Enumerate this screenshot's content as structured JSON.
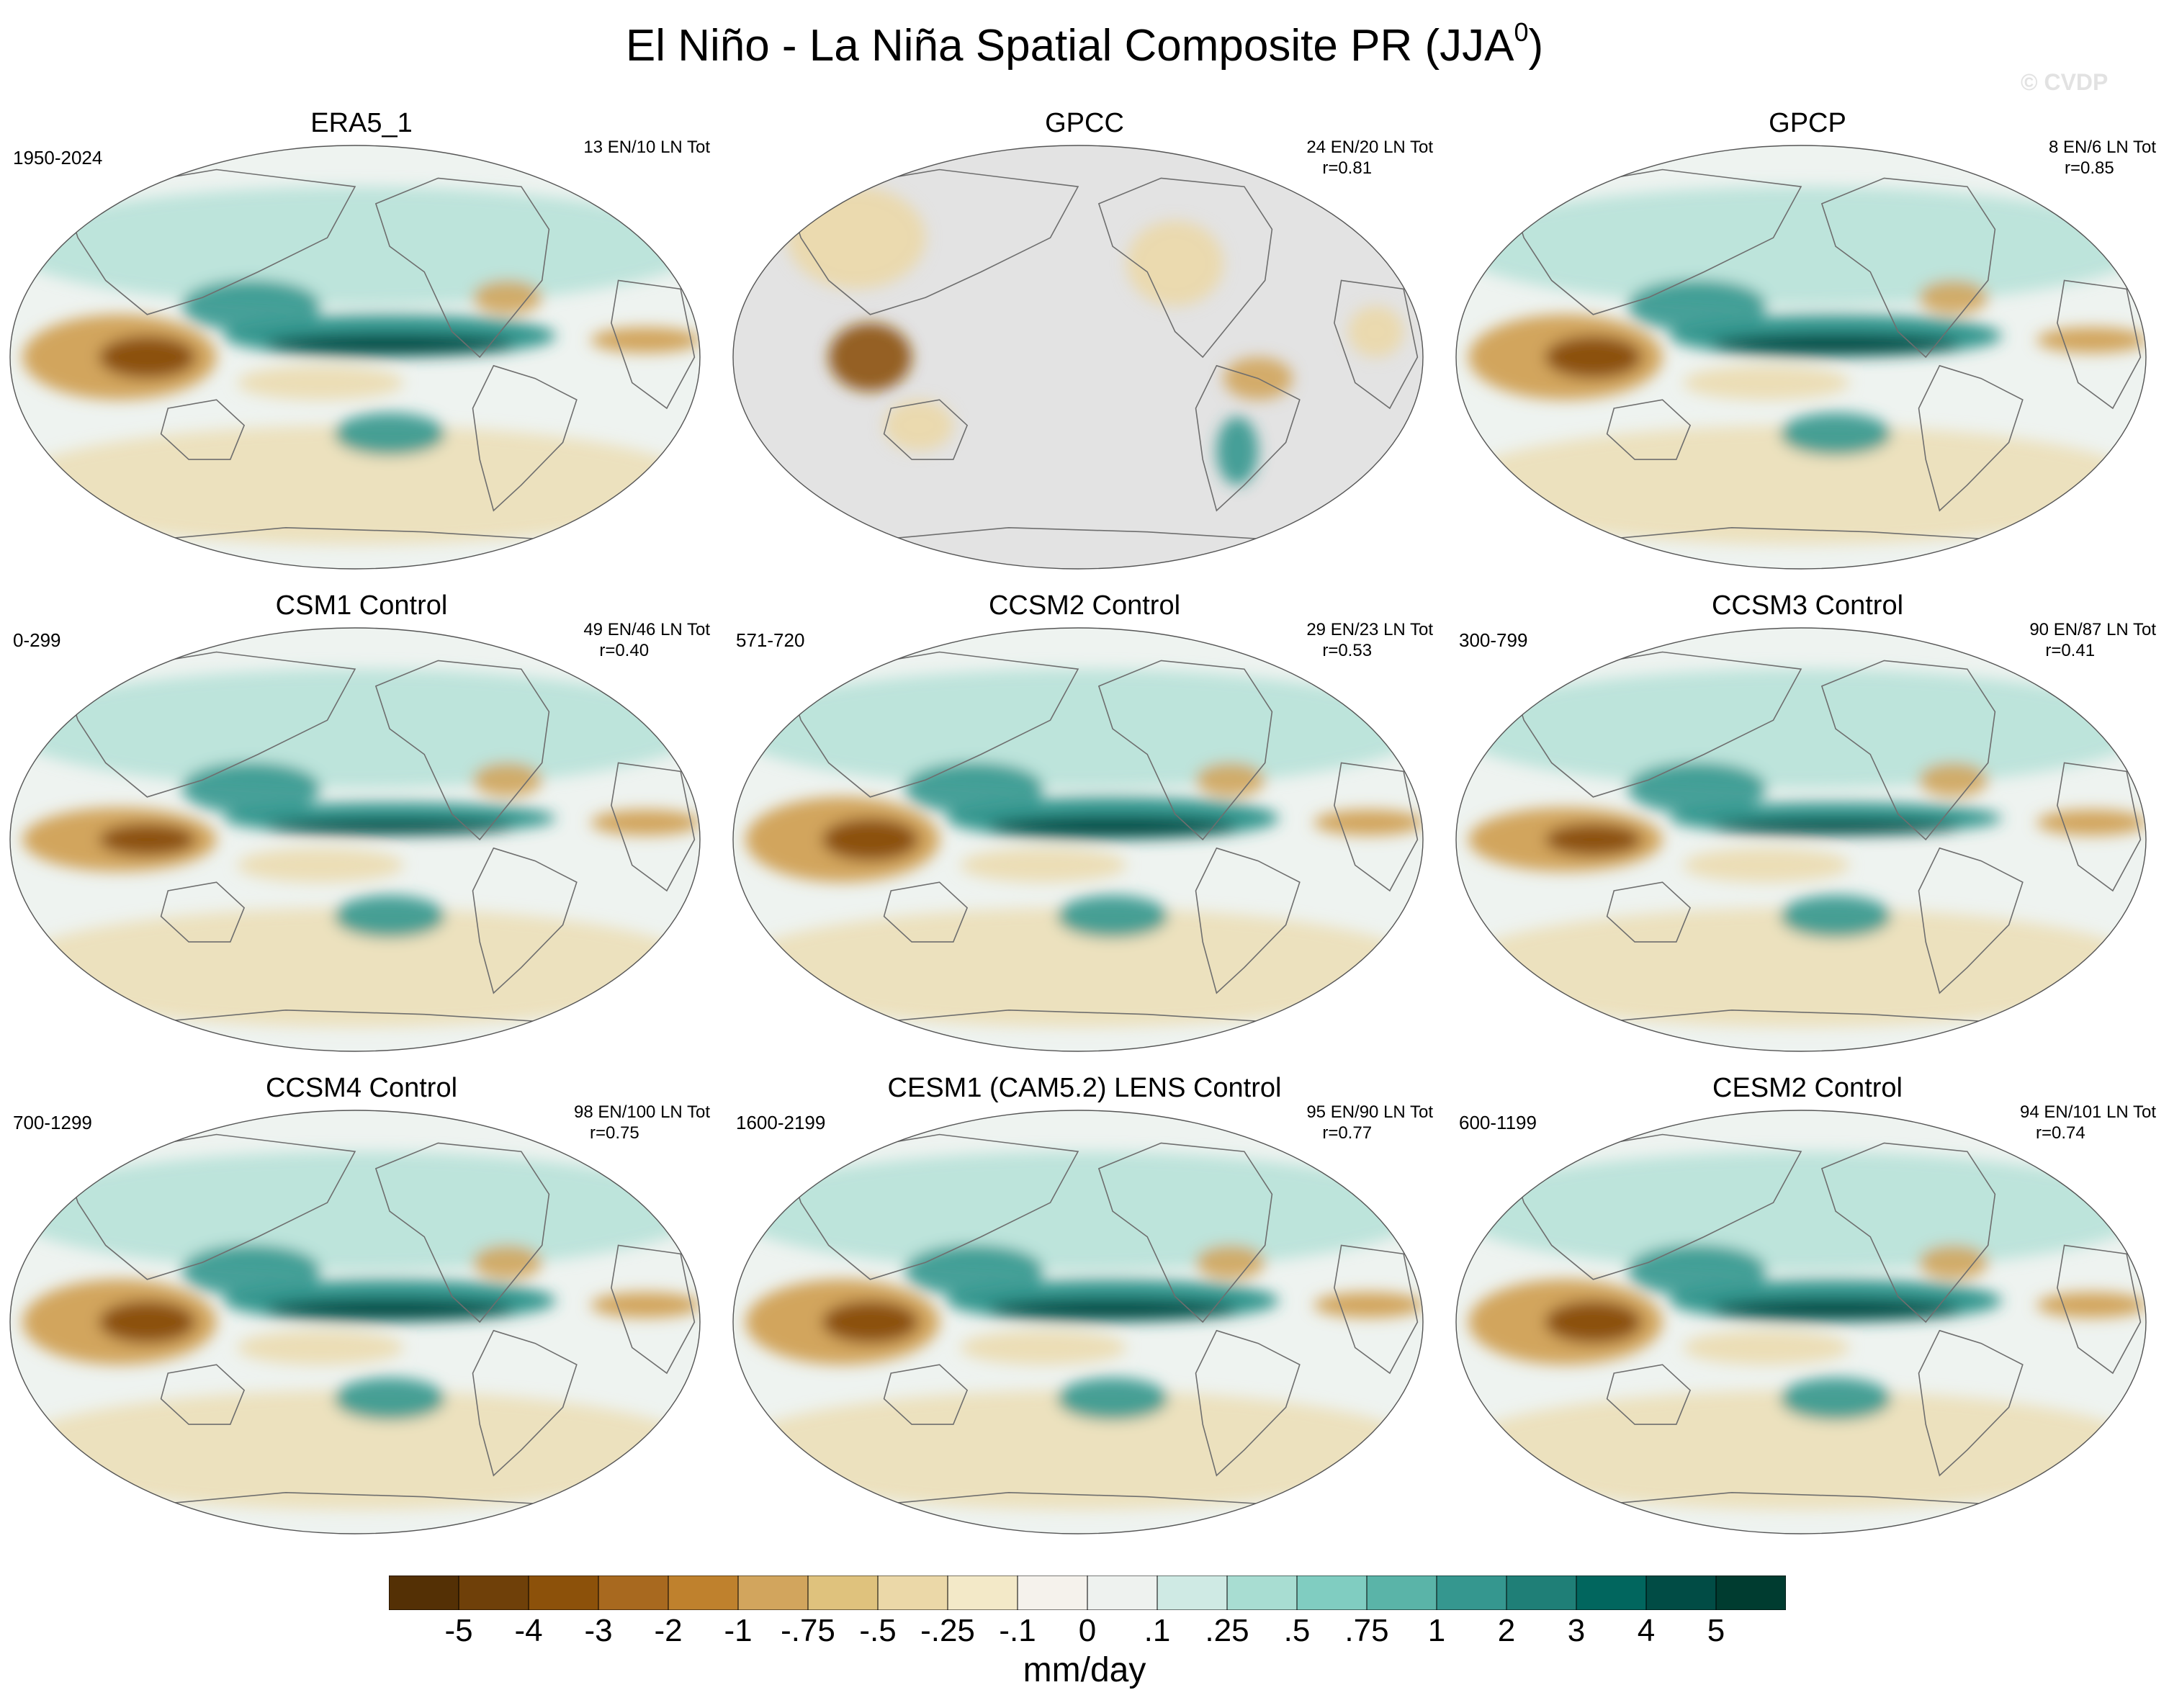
{
  "title": "El Niño - La Niña Spatial Composite PR (JJA",
  "title_sup": "0",
  "title_close": ")",
  "watermark": "© CVDP",
  "panels": [
    {
      "name": "ERA5_1",
      "period": "1950-2024",
      "counts": "13 EN/10 LN Tot",
      "r": "",
      "type": "full"
    },
    {
      "name": "GPCC",
      "period": "",
      "counts": "24 EN/20 LN Tot",
      "r": "r=0.81",
      "type": "land"
    },
    {
      "name": "GPCP",
      "period": "",
      "counts": "8 EN/6 LN Tot",
      "r": "r=0.85",
      "type": "full"
    },
    {
      "name": "CSM1 Control",
      "period": "0-299",
      "counts": "49 EN/46 LN Tot",
      "r": "r=0.40",
      "type": "model_weak"
    },
    {
      "name": "CCSM2 Control",
      "period": "571-720",
      "counts": "29 EN/23 LN Tot",
      "r": "r=0.53",
      "type": "model"
    },
    {
      "name": "CCSM3 Control",
      "period": "300-799",
      "counts": "90 EN/87 LN Tot",
      "r": "r=0.41",
      "type": "model_weak"
    },
    {
      "name": "CCSM4 Control",
      "period": "700-1299",
      "counts": "98 EN/100 LN Tot",
      "r": "r=0.75",
      "type": "model_strong"
    },
    {
      "name": "CESM1 (CAM5.2) LENS Control",
      "period": "1600-2199",
      "counts": "95 EN/90 LN Tot",
      "r": "r=0.77",
      "type": "model_strong"
    },
    {
      "name": "CESM2 Control",
      "period": "600-1199",
      "counts": "94 EN/101 LN Tot",
      "r": "r=0.74",
      "type": "model_strong"
    }
  ],
  "colorbar": {
    "labels": [
      "-5",
      "-4",
      "-3",
      "-2",
      "-1",
      "-.75",
      "-.5",
      "-.25",
      "-.1",
      "0",
      ".1",
      ".25",
      ".5",
      ".75",
      "1",
      "2",
      "3",
      "4",
      "5"
    ],
    "colors": [
      "#543005",
      "#6f4009",
      "#8c510a",
      "#a8691f",
      "#bf812d",
      "#d2a55d",
      "#dfc27d",
      "#ebd8a8",
      "#f3e9c8",
      "#f5f2ec",
      "#eef2ef",
      "#cfeae4",
      "#a8ddd2",
      "#80cdc1",
      "#5ab4a8",
      "#35978f",
      "#1f7f77",
      "#01665e",
      "#014c45",
      "#003c30"
    ],
    "units": "mm/day"
  },
  "map_colors": {
    "ocean_bg": "#eef3f0",
    "missing": "#e3e3e3",
    "coast": "#6e6e6e",
    "dry_strong": "#8c510a",
    "dry_mid": "#d2a55d",
    "dry_light": "#ebd8a8",
    "wet_strong": "#014c45",
    "wet_mid": "#35978f",
    "wet_light": "#a8ddd2"
  }
}
